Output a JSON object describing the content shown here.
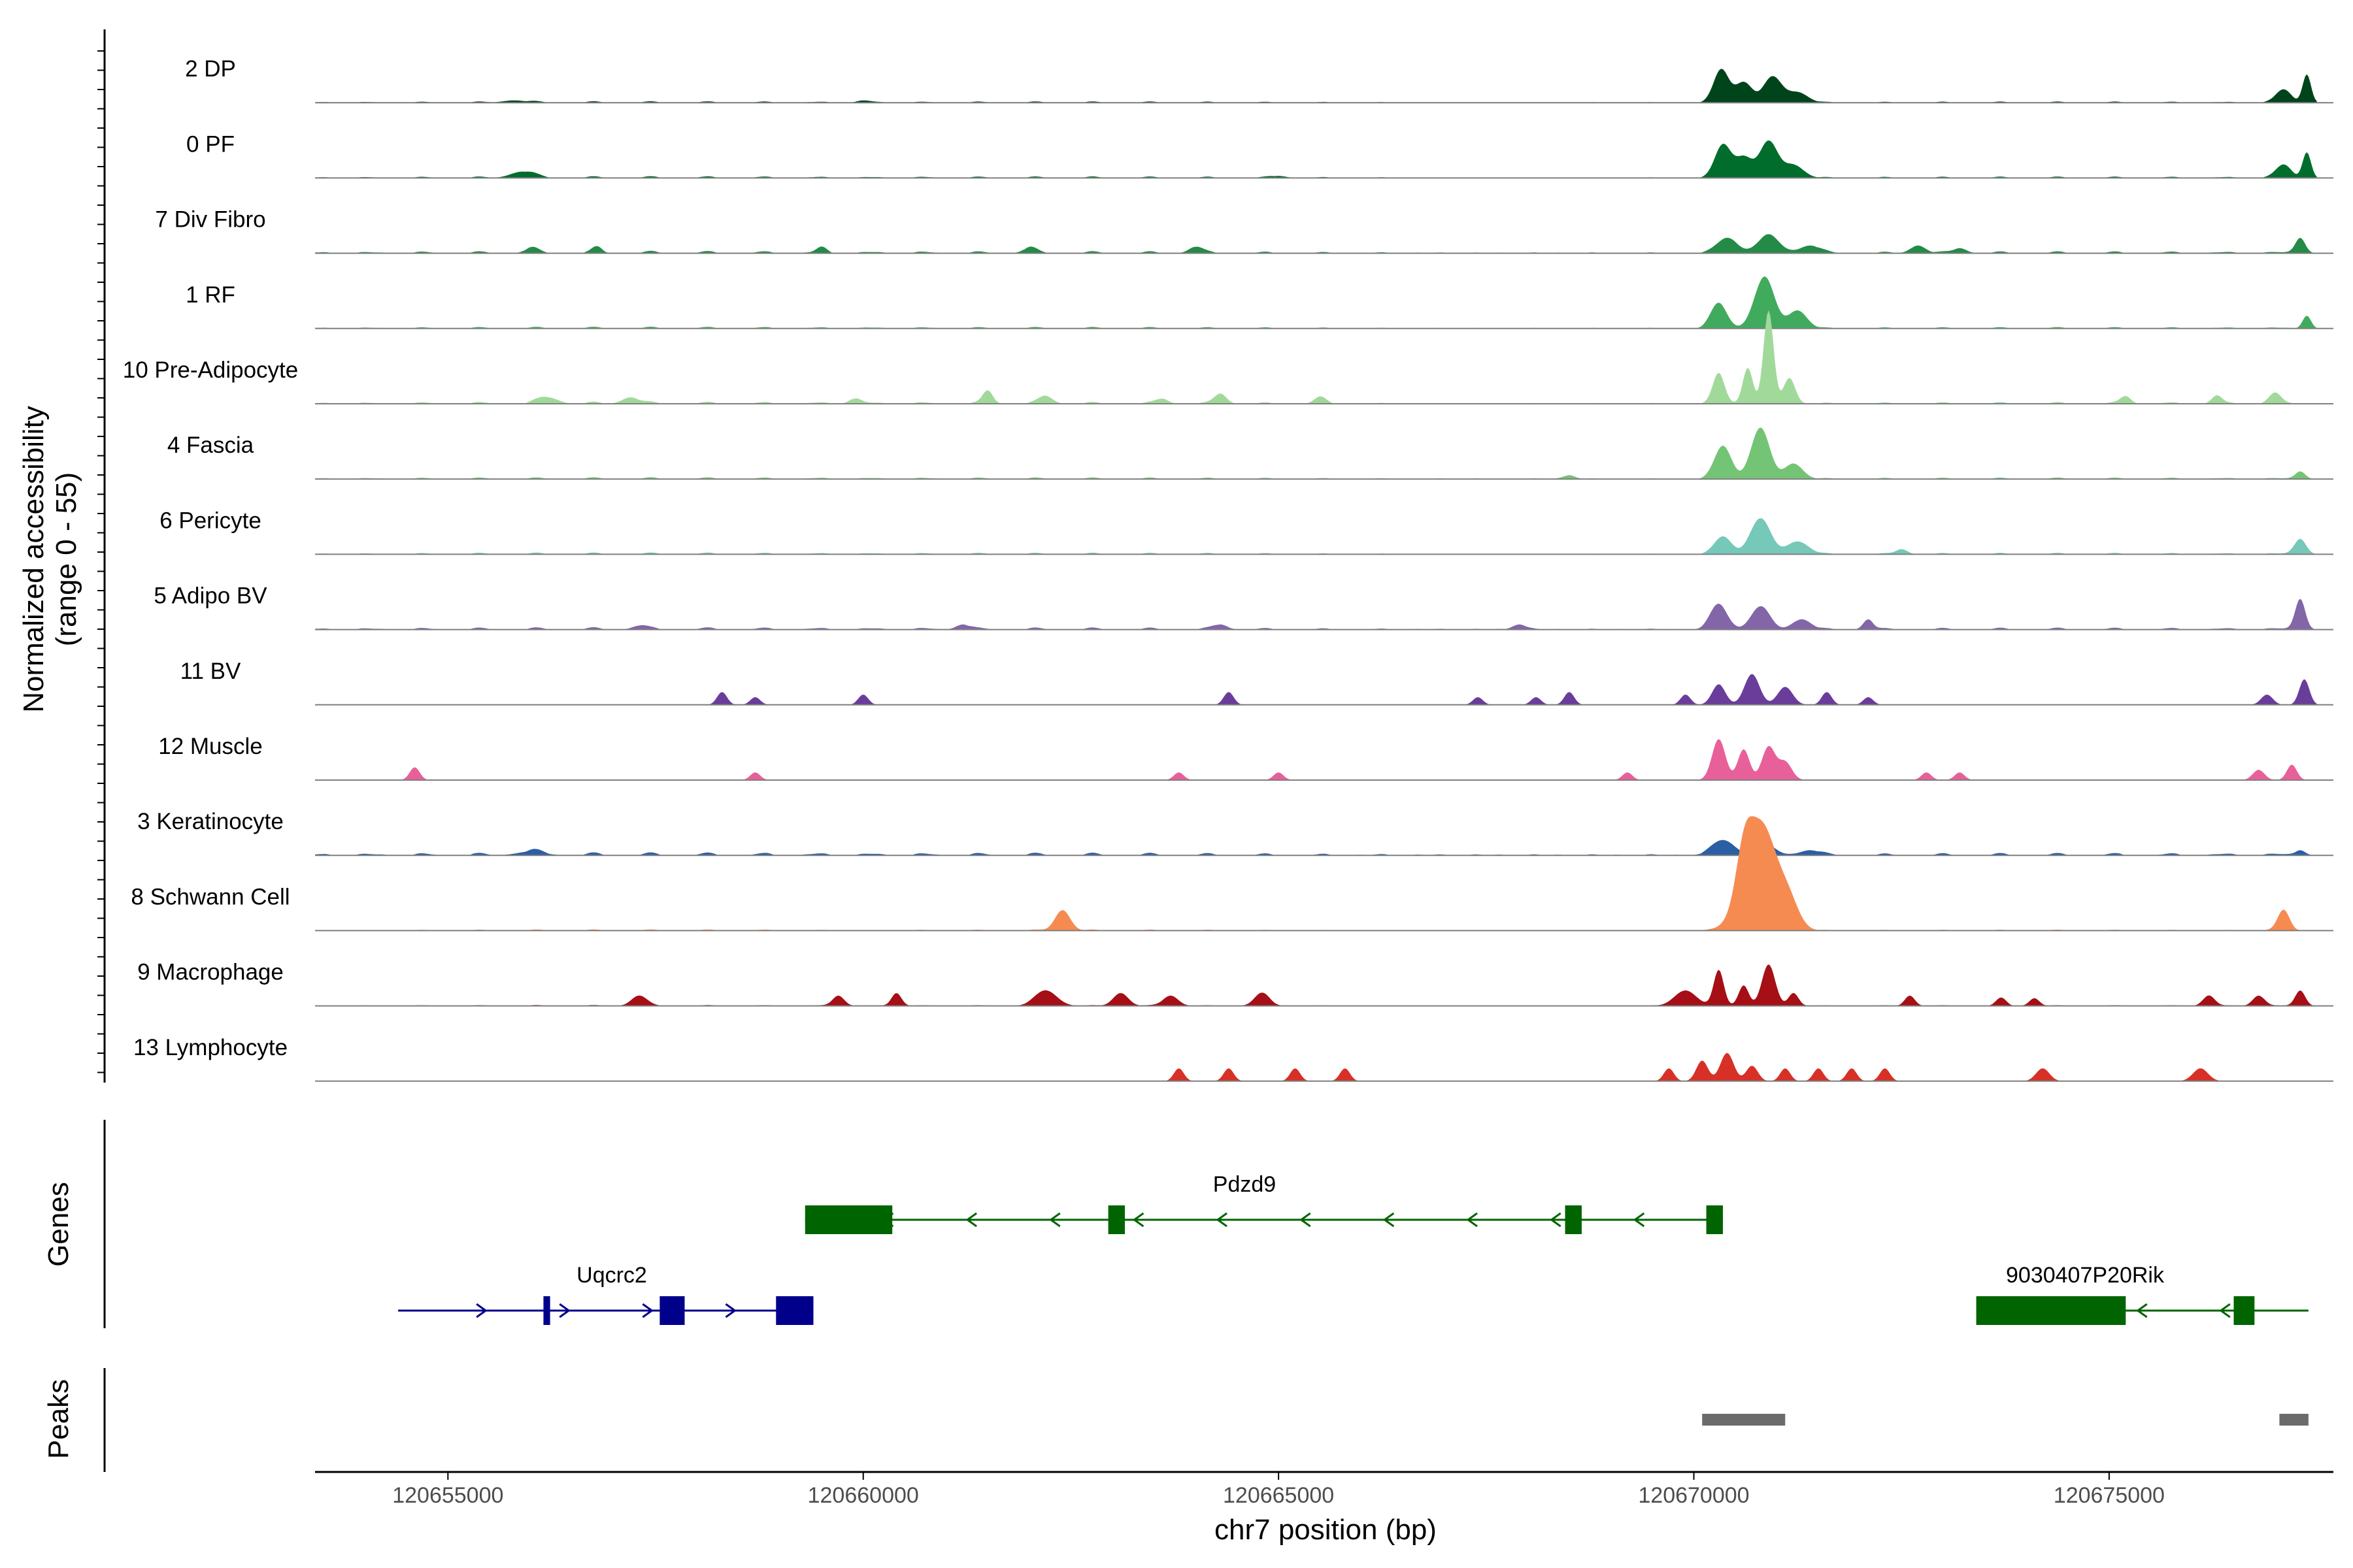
{
  "chart_data": {
    "type": "area",
    "title": "",
    "ylabel": "Normalized accessibility\n(range 0 - 55)",
    "ylabel_lines": [
      "Normalized accessibility",
      "(range 0 - 55)"
    ],
    "ylim": [
      0,
      55
    ],
    "xlabel": "chr7 position (bp)",
    "xlim": [
      120653400,
      120677700
    ],
    "x_ticks": [
      120655000,
      120660000,
      120665000,
      120670000,
      120675000
    ],
    "x_tick_labels": [
      "120655000",
      "120660000",
      "120665000",
      "120670000",
      "120675000"
    ],
    "track_region": [
      120653400,
      120677500
    ],
    "series": [
      {
        "name": "2 DP",
        "color": "#00441b",
        "background": 0.5,
        "peaks": [
          [
            120655800,
            0.9,
            140
          ],
          [
            120660000,
            0.6,
            90
          ],
          [
            120670330,
            13,
            90
          ],
          [
            120670600,
            8,
            100
          ],
          [
            120670950,
            10,
            110
          ],
          [
            120671250,
            4,
            120
          ],
          [
            120677100,
            5,
            90
          ],
          [
            120677380,
            11,
            50
          ]
        ]
      },
      {
        "name": "0 PF",
        "color": "#006d2c",
        "background": 0.6,
        "peaks": [
          [
            120655900,
            2.5,
            140
          ],
          [
            120665000,
            0.8,
            90
          ],
          [
            120670350,
            13,
            95
          ],
          [
            120670600,
            8,
            100
          ],
          [
            120670900,
            14,
            110
          ],
          [
            120671200,
            5,
            120
          ],
          [
            120677100,
            5,
            90
          ],
          [
            120677380,
            10,
            50
          ]
        ]
      },
      {
        "name": "7 Div Fibro",
        "color": "#238b45",
        "background": 0.8,
        "peaks": [
          [
            120656000,
            1.8,
            80
          ],
          [
            120656800,
            2,
            60
          ],
          [
            120659500,
            2,
            60
          ],
          [
            120662000,
            2,
            80
          ],
          [
            120664000,
            2.5,
            80
          ],
          [
            120670400,
            6,
            120
          ],
          [
            120670900,
            7,
            130
          ],
          [
            120671400,
            3,
            120
          ],
          [
            120672700,
            3,
            90
          ],
          [
            120673200,
            2,
            80
          ],
          [
            120677300,
            6,
            60
          ]
        ]
      },
      {
        "name": "1 RF",
        "color": "#41ab5d",
        "background": 0.6,
        "peaks": [
          [
            120670300,
            10,
            95
          ],
          [
            120670850,
            20,
            120
          ],
          [
            120671250,
            7,
            110
          ],
          [
            120677380,
            5,
            50
          ]
        ]
      },
      {
        "name": "10 Pre-Adipocyte",
        "color": "#a1d99b",
        "background": 0.7,
        "peaks": [
          [
            120656200,
            2.5,
            120
          ],
          [
            120657200,
            2.5,
            100
          ],
          [
            120659900,
            2,
            70
          ],
          [
            120661500,
            5,
            60
          ],
          [
            120662200,
            3,
            80
          ],
          [
            120663600,
            2,
            70
          ],
          [
            120664300,
            4,
            70
          ],
          [
            120665500,
            2.5,
            70
          ],
          [
            120670300,
            12,
            70
          ],
          [
            120670650,
            14,
            60
          ],
          [
            120670900,
            36,
            60
          ],
          [
            120671150,
            10,
            70
          ],
          [
            120675200,
            3,
            60
          ],
          [
            120676300,
            3,
            60
          ],
          [
            120677000,
            4,
            70
          ]
        ]
      },
      {
        "name": "4 Fascia",
        "color": "#74c476",
        "background": 0.6,
        "peaks": [
          [
            120668500,
            1.5,
            70
          ],
          [
            120670350,
            13,
            100
          ],
          [
            120670800,
            20,
            110
          ],
          [
            120671200,
            6,
            110
          ],
          [
            120677300,
            3,
            60
          ]
        ]
      },
      {
        "name": "6 Pericyte",
        "color": "#76c8b8",
        "background": 0.6,
        "peaks": [
          [
            120670350,
            7,
            100
          ],
          [
            120670800,
            14,
            120
          ],
          [
            120671250,
            5,
            130
          ],
          [
            120672500,
            2,
            70
          ],
          [
            120677300,
            6,
            70
          ]
        ]
      },
      {
        "name": "5 Adipo BV",
        "color": "#8266a8",
        "background": 0.8,
        "peaks": [
          [
            120657300,
            1.5,
            80
          ],
          [
            120661200,
            2,
            80
          ],
          [
            120664300,
            2,
            80
          ],
          [
            120667900,
            2,
            80
          ],
          [
            120670300,
            10,
            100
          ],
          [
            120670800,
            9,
            110
          ],
          [
            120671300,
            4,
            110
          ],
          [
            120672100,
            4,
            60
          ],
          [
            120677300,
            12,
            60
          ]
        ]
      },
      {
        "name": "11 BV",
        "color": "#6a3d9a",
        "background": 0,
        "peaks": [
          [
            120658300,
            5,
            60
          ],
          [
            120658700,
            3,
            60
          ],
          [
            120660000,
            4,
            60
          ],
          [
            120664400,
            5,
            60
          ],
          [
            120667400,
            3,
            60
          ],
          [
            120668100,
            3,
            60
          ],
          [
            120668500,
            5,
            60
          ],
          [
            120669900,
            4,
            60
          ],
          [
            120670300,
            8,
            80
          ],
          [
            120670700,
            12,
            90
          ],
          [
            120671100,
            7,
            90
          ],
          [
            120671600,
            5,
            60
          ],
          [
            120672100,
            3,
            60
          ],
          [
            120676900,
            4,
            70
          ],
          [
            120677350,
            10,
            60
          ]
        ]
      },
      {
        "name": "12 Muscle",
        "color": "#e8609a",
        "background": 0,
        "peaks": [
          [
            120654600,
            5,
            60
          ],
          [
            120658700,
            3,
            60
          ],
          [
            120663800,
            3,
            60
          ],
          [
            120665000,
            3,
            60
          ],
          [
            120669200,
            3,
            60
          ],
          [
            120670300,
            16,
            80
          ],
          [
            120670600,
            12,
            70
          ],
          [
            120670900,
            13,
            80
          ],
          [
            120671100,
            7,
            80
          ],
          [
            120672800,
            3,
            60
          ],
          [
            120673200,
            3,
            60
          ],
          [
            120676800,
            4,
            70
          ],
          [
            120677200,
            6,
            60
          ]
        ]
      },
      {
        "name": "3 Keratinocyte",
        "color": "#2b5fa5",
        "background": 1.0,
        "peaks": [
          [
            120656000,
            1.5,
            160
          ],
          [
            120670350,
            6,
            130
          ],
          [
            120670850,
            4,
            130
          ],
          [
            120671400,
            2,
            120
          ],
          [
            120677300,
            2,
            60
          ]
        ]
      },
      {
        "name": "8 Schwann Cell",
        "color": "#f68b52",
        "background": 0.4,
        "peaks": [
          [
            120662400,
            8,
            90
          ],
          [
            120670800,
            42,
            200
          ],
          [
            120670600,
            14,
            90
          ],
          [
            120671150,
            8,
            120
          ],
          [
            120677100,
            8,
            70
          ]
        ]
      },
      {
        "name": "9 Macrophage",
        "color": "#a50f15",
        "background": 0.3,
        "peaks": [
          [
            120657300,
            4,
            90
          ],
          [
            120659700,
            4,
            70
          ],
          [
            120660400,
            5,
            60
          ],
          [
            120662200,
            6,
            130
          ],
          [
            120663100,
            5,
            90
          ],
          [
            120663700,
            4,
            90
          ],
          [
            120664800,
            5,
            90
          ],
          [
            120669900,
            6,
            130
          ],
          [
            120670300,
            14,
            60
          ],
          [
            120670600,
            8,
            60
          ],
          [
            120670900,
            16,
            80
          ],
          [
            120671200,
            5,
            60
          ],
          [
            120672600,
            4,
            60
          ],
          [
            120673700,
            3,
            60
          ],
          [
            120674100,
            3,
            60
          ],
          [
            120676200,
            4,
            70
          ],
          [
            120676800,
            4,
            70
          ],
          [
            120677300,
            6,
            60
          ]
        ]
      },
      {
        "name": "13 Lymphocyte",
        "color": "#d73027",
        "background": 0,
        "peaks": [
          [
            120663800,
            5,
            60
          ],
          [
            120664400,
            5,
            60
          ],
          [
            120665200,
            5,
            60
          ],
          [
            120665800,
            5,
            60
          ],
          [
            120669700,
            5,
            60
          ],
          [
            120670100,
            8,
            70
          ],
          [
            120670400,
            11,
            80
          ],
          [
            120670700,
            6,
            70
          ],
          [
            120671100,
            5,
            60
          ],
          [
            120671500,
            5,
            60
          ],
          [
            120671900,
            5,
            60
          ],
          [
            120672300,
            5,
            60
          ],
          [
            120674200,
            5,
            80
          ],
          [
            120676100,
            5,
            90
          ]
        ]
      }
    ],
    "genes": [
      {
        "name": "Pdzd9",
        "strand": "-",
        "color": "#006400",
        "start": 120659300,
        "end": 120670350,
        "exons": [
          [
            120659300,
            120660350
          ],
          [
            120662950,
            120663150
          ],
          [
            120668450,
            120668650
          ],
          [
            120670150,
            120670350
          ]
        ]
      },
      {
        "name": "Uqcrc2",
        "strand": "+",
        "color": "#00008b",
        "start": 120654400,
        "end": 120659400,
        "exons": [
          [
            120656150,
            120656230
          ],
          [
            120657550,
            120657850
          ],
          [
            120658950,
            120659400
          ]
        ]
      },
      {
        "name": "9030407P20Rik",
        "strand": "-",
        "color": "#006400",
        "start": 120673400,
        "end": 120677400,
        "exons": [
          [
            120673400,
            120675200
          ],
          [
            120676500,
            120676750
          ]
        ]
      }
    ],
    "peaks": [
      [
        120670100,
        120671100
      ],
      [
        120677050,
        120677400
      ]
    ],
    "peak_color": "#6b6b6b",
    "panels": {
      "genes_label": "Genes",
      "peaks_label": "Peaks"
    }
  }
}
